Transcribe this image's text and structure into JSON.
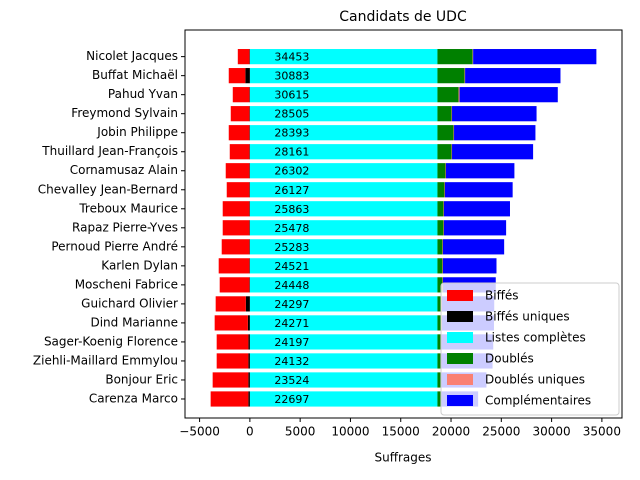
{
  "chart_data": {
    "type": "bar",
    "orientation": "horizontal",
    "stacked": true,
    "title": "Candidats de UDC",
    "x_label": "Suffrages",
    "categories": [
      "Nicolet Jacques",
      "Buffat Michaël",
      "Pahud Yvan",
      "Freymond Sylvain",
      "Jobin Philippe",
      "Thuillard Jean-François",
      "Cornamusaz Alain",
      "Chevalley Jean-Bernard",
      "Treboux Maurice",
      "Rapaz Pierre-Yves",
      "Pernoud Pierre André",
      "Karlen Dylan",
      "Moscheni Fabrice",
      "Guichard Olivier",
      "Dind Marianne",
      "Sager-Koenig Florence",
      "Ziehli-Maillard Emmylou",
      "Bonjour Eric",
      "Carenza Marco"
    ],
    "totals": [
      34453,
      30883,
      30615,
      28505,
      28393,
      28161,
      26302,
      26127,
      25863,
      25478,
      25283,
      24521,
      24448,
      24297,
      24271,
      24197,
      24132,
      23524,
      22697
    ],
    "series": [
      {
        "name": "Biffés",
        "color": "#ff0000",
        "values": [
          -1150,
          -1650,
          -1650,
          -1850,
          -2050,
          -1950,
          -2350,
          -2250,
          -2650,
          -2650,
          -2750,
          -3050,
          -2950,
          -3000,
          -3300,
          -3150,
          -3150,
          -3550,
          -3750
        ]
      },
      {
        "name": "Biffés uniques",
        "color": "#000000",
        "values": [
          -50,
          -450,
          -50,
          -50,
          -50,
          -50,
          -50,
          -50,
          -50,
          -50,
          -50,
          -50,
          -50,
          -400,
          -200,
          -150,
          -150,
          -150,
          -150
        ]
      },
      {
        "name": "Listes complètes",
        "color": "#00ffff",
        "values": [
          18650,
          18650,
          18650,
          18650,
          18650,
          18650,
          18650,
          18650,
          18650,
          18650,
          18650,
          18650,
          18650,
          18650,
          18650,
          18650,
          18650,
          18650,
          18650
        ]
      },
      {
        "name": "Doublés",
        "color": "#008000",
        "values": [
          3500,
          2700,
          2100,
          1400,
          1600,
          1400,
          800,
          700,
          600,
          600,
          500,
          500,
          500,
          400,
          400,
          300,
          300,
          300,
          300
        ]
      },
      {
        "name": "Doublés uniques",
        "color": "#fa8072",
        "values": [
          50,
          50,
          100,
          50,
          50,
          50,
          50,
          50,
          50,
          50,
          50,
          50,
          50,
          50,
          50,
          50,
          50,
          50,
          50
        ]
      },
      {
        "name": "Complémentaires",
        "color": "#0000ff",
        "values": [
          12253,
          9483,
          9765,
          8405,
          8093,
          8061,
          6802,
          6727,
          6563,
          6178,
          6083,
          5321,
          5248,
          5197,
          5171,
          5197,
          5132,
          4524,
          3697
        ]
      }
    ],
    "xlim": [
      -6450,
      37000
    ],
    "xticks": [
      {
        "value": -5000,
        "label": "−5000"
      },
      0,
      5000,
      10000,
      15000,
      20000,
      25000,
      30000,
      35000
    ],
    "legend": "lower right"
  }
}
